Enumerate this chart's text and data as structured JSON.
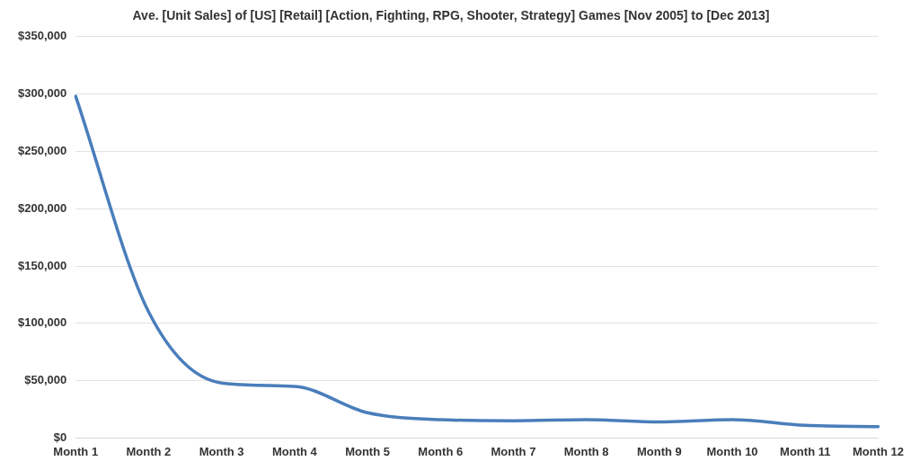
{
  "chart_data": {
    "type": "line",
    "title": "Ave. [Unit Sales] of [US] [Retail] [Action, Fighting, RPG, Shooter, Strategy] Games [Nov 2005] to [Dec 2013]",
    "categories": [
      "Month 1",
      "Month 2",
      "Month 3",
      "Month 4",
      "Month 5",
      "Month 6",
      "Month 7",
      "Month 8",
      "Month 9",
      "Month 10",
      "Month 11",
      "Month 12"
    ],
    "series": [
      {
        "color": "#4a7ebb",
        "values": [
          298000,
          110000,
          48000,
          45000,
          22000,
          16000,
          15000,
          16000,
          14000,
          16000,
          11000,
          10000
        ]
      }
    ],
    "ylim": [
      0,
      350000
    ],
    "yticks": [
      {
        "value": 0,
        "label": "$0"
      },
      {
        "value": 50000,
        "label": "$50,000"
      },
      {
        "value": 100000,
        "label": "$100,000"
      },
      {
        "value": 150000,
        "label": "$150,000"
      },
      {
        "value": 200000,
        "label": "$200,000"
      },
      {
        "value": 250000,
        "label": "$250,000"
      },
      {
        "value": 300000,
        "label": "$300,000"
      },
      {
        "value": 350000,
        "label": "$350,000"
      }
    ],
    "grid": "y",
    "legend": false,
    "marker": "none",
    "line_style": "solid"
  }
}
